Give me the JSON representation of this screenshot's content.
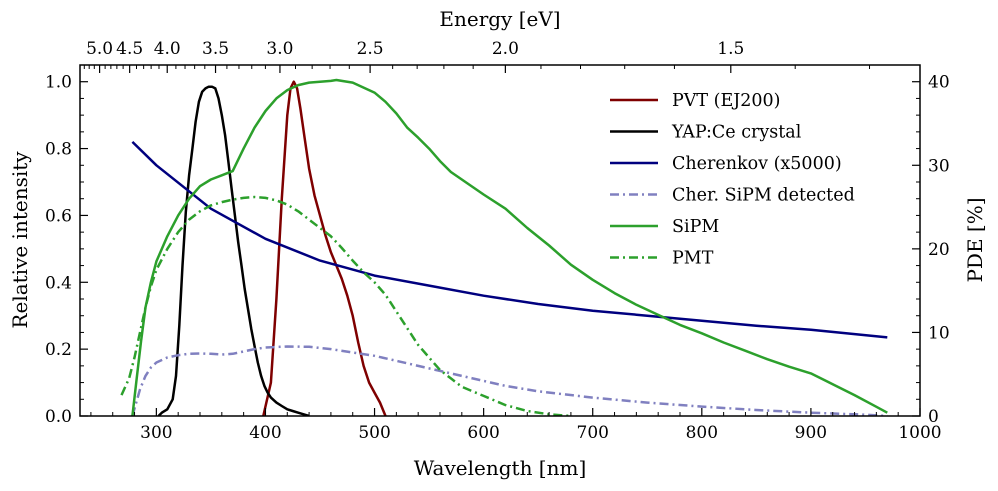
{
  "chart_data": {
    "type": "line",
    "xlabel": "Wavelength [nm]",
    "ylabel": "Relative intensity",
    "y2label": "PDE [%]",
    "top_axis_label": "Energy [eV]",
    "xlim": [
      230,
      1000
    ],
    "ylim": [
      0,
      1.05
    ],
    "y2lim": [
      0,
      42
    ],
    "x_ticks": [
      300,
      400,
      500,
      600,
      700,
      800,
      900,
      1000
    ],
    "y_ticks": [
      0.0,
      0.2,
      0.4,
      0.6,
      0.8,
      1.0
    ],
    "y_tick_labels": [
      "0.0",
      "0.2",
      "0.4",
      "0.6",
      "0.8",
      "1.0"
    ],
    "y2_ticks": [
      0,
      10,
      20,
      30,
      40
    ],
    "energy_ticks": [
      {
        "value": 5.0,
        "label": "5.0"
      },
      {
        "value": 4.5,
        "label": "4.5"
      },
      {
        "value": 4.0,
        "label": "4.0"
      },
      {
        "value": 3.5,
        "label": "3.5"
      },
      {
        "value": 3.0,
        "label": "3.0"
      },
      {
        "value": 2.5,
        "label": "2.5"
      },
      {
        "value": 2.0,
        "label": "2.0"
      },
      {
        "value": 1.5,
        "label": "1.5"
      }
    ],
    "grid": false,
    "legend_position": "top-right",
    "series": [
      {
        "name": "PVT (EJ200)",
        "axis": "left",
        "color": "#7f0000",
        "style": "solid",
        "x": [
          398,
          405,
          410,
          415,
          420,
          423,
          426,
          429,
          432,
          436,
          440,
          445,
          450,
          455,
          460,
          465,
          470,
          475,
          480,
          485,
          490,
          495,
          500,
          505,
          510
        ],
        "y": [
          0.0,
          0.1,
          0.35,
          0.65,
          0.9,
          0.98,
          1.0,
          0.98,
          0.92,
          0.83,
          0.74,
          0.66,
          0.6,
          0.54,
          0.49,
          0.45,
          0.41,
          0.36,
          0.3,
          0.22,
          0.15,
          0.1,
          0.07,
          0.04,
          0.0
        ]
      },
      {
        "name": "YAP:Ce crystal",
        "axis": "left",
        "color": "#000000",
        "style": "solid",
        "x": [
          302,
          305,
          310,
          315,
          318,
          321,
          324,
          327,
          330,
          333,
          336,
          339,
          342,
          345,
          348,
          351,
          354,
          357,
          360,
          363,
          366,
          369,
          372,
          375,
          378,
          381,
          384,
          387,
          390,
          393,
          396,
          399,
          402,
          405,
          410,
          415,
          420,
          425,
          430,
          435,
          440
        ],
        "y": [
          0.0,
          0.01,
          0.02,
          0.05,
          0.12,
          0.27,
          0.45,
          0.61,
          0.72,
          0.8,
          0.88,
          0.94,
          0.97,
          0.98,
          0.985,
          0.985,
          0.98,
          0.95,
          0.9,
          0.84,
          0.76,
          0.68,
          0.6,
          0.52,
          0.45,
          0.38,
          0.32,
          0.26,
          0.21,
          0.16,
          0.12,
          0.09,
          0.07,
          0.055,
          0.04,
          0.03,
          0.02,
          0.015,
          0.01,
          0.005,
          0.0
        ]
      },
      {
        "name": "Cherenkov (x5000)",
        "axis": "left",
        "color": "#00007f",
        "style": "solid",
        "x": [
          278,
          300,
          350,
          400,
          450,
          500,
          550,
          600,
          650,
          700,
          750,
          800,
          850,
          900,
          970
        ],
        "y": [
          0.82,
          0.75,
          0.62,
          0.53,
          0.465,
          0.42,
          0.39,
          0.36,
          0.335,
          0.315,
          0.3,
          0.285,
          0.27,
          0.258,
          0.235
        ]
      },
      {
        "name": "Cher. SiPM detected",
        "axis": "left",
        "color": "#8080c0",
        "style": "dashdot",
        "x": [
          278,
          285,
          290,
          295,
          300,
          310,
          320,
          330,
          340,
          350,
          360,
          370,
          380,
          390,
          400,
          420,
          440,
          460,
          480,
          500,
          520,
          540,
          560,
          580,
          600,
          620,
          650,
          700,
          750,
          800,
          850,
          900,
          950,
          970
        ],
        "y": [
          0.0,
          0.08,
          0.12,
          0.145,
          0.16,
          0.175,
          0.182,
          0.186,
          0.187,
          0.186,
          0.184,
          0.186,
          0.193,
          0.2,
          0.205,
          0.208,
          0.207,
          0.2,
          0.19,
          0.18,
          0.165,
          0.15,
          0.135,
          0.12,
          0.105,
          0.09,
          0.074,
          0.055,
          0.04,
          0.028,
          0.018,
          0.01,
          0.004,
          0.0
        ]
      },
      {
        "name": "SiPM",
        "axis": "right",
        "color": "#2ca02c",
        "style": "solid",
        "x": [
          278,
          282,
          286,
          290,
          295,
          300,
          310,
          320,
          330,
          340,
          350,
          360,
          370,
          380,
          390,
          400,
          410,
          420,
          430,
          440,
          450,
          460,
          465,
          470,
          480,
          490,
          500,
          510,
          520,
          530,
          540,
          550,
          560,
          570,
          580,
          590,
          600,
          620,
          640,
          660,
          680,
          700,
          720,
          740,
          760,
          780,
          800,
          820,
          840,
          860,
          880,
          900,
          920,
          940,
          960,
          970
        ],
        "y": [
          0.0,
          4.5,
          9,
          13,
          16,
          18.5,
          21.5,
          24,
          26,
          27.5,
          28.3,
          28.8,
          29.3,
          32,
          34.5,
          36.5,
          38,
          39,
          39.6,
          39.9,
          40,
          40.1,
          40.2,
          40.1,
          39.9,
          39.3,
          38.7,
          37.6,
          36.2,
          34.5,
          33.3,
          32,
          30.5,
          29.2,
          28.3,
          27.4,
          26.5,
          24.8,
          22.5,
          20.4,
          18.1,
          16.3,
          14.7,
          13.3,
          12.1,
          10.9,
          9.9,
          8.8,
          7.8,
          6.8,
          5.9,
          5.1,
          3.8,
          2.5,
          1.1,
          0.4
        ]
      },
      {
        "name": "PMT",
        "axis": "right",
        "color": "#2ca02c",
        "style": "dashdot",
        "x": [
          268,
          275,
          280,
          285,
          290,
          295,
          300,
          310,
          320,
          330,
          340,
          350,
          360,
          370,
          380,
          390,
          400,
          410,
          420,
          430,
          440,
          450,
          460,
          470,
          480,
          490,
          500,
          510,
          520,
          530,
          540,
          550,
          560,
          570,
          580,
          600,
          620,
          640,
          660,
          680
        ],
        "y": [
          2.5,
          4.5,
          7,
          10,
          13,
          15.5,
          17.5,
          20,
          22,
          23.5,
          24.5,
          25.2,
          25.6,
          25.9,
          26.1,
          26.2,
          26.1,
          25.8,
          25.3,
          24.5,
          23.5,
          22.5,
          21.5,
          20.1,
          18.6,
          17.2,
          16,
          14.5,
          12.5,
          10.5,
          8.5,
          7,
          5.5,
          4.5,
          3.5,
          2.4,
          1.3,
          0.6,
          0.2,
          0.0
        ]
      }
    ]
  }
}
